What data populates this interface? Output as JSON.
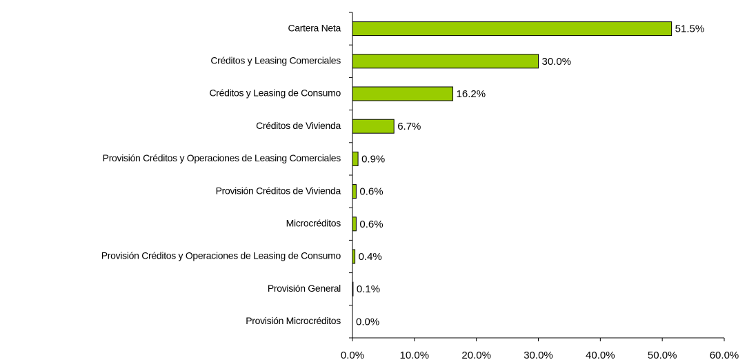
{
  "chart_data": {
    "type": "barh",
    "categories": [
      "Cartera Neta",
      "Créditos y Leasing Comerciales",
      "Créditos y Leasing de Consumo",
      "Créditos de Vivienda",
      "Provisión Créditos y Operaciones de Leasing Comerciales",
      "Provisión Créditos de Vivienda",
      "Microcréditos",
      "Provisión Créditos y Operaciones de Leasing de Consumo",
      "Provisión General",
      "Provisión Microcréditos"
    ],
    "values": [
      51.5,
      30.0,
      16.2,
      6.7,
      0.9,
      0.6,
      0.6,
      0.4,
      0.1,
      0.0
    ],
    "value_labels": [
      "51.5%",
      "30.0%",
      "16.2%",
      "6.7%",
      "0.9%",
      "0.6%",
      "0.6%",
      "0.4%",
      "0.1%",
      "0.0%"
    ],
    "color": "#99cc00",
    "xlim": [
      0,
      60
    ],
    "xticks": [
      {
        "value": 0,
        "label": "0.0%"
      },
      {
        "value": 10,
        "label": "10.0%"
      },
      {
        "value": 20,
        "label": "20.0%"
      },
      {
        "value": 30,
        "label": "30.0%"
      },
      {
        "value": 40,
        "label": "40.0%"
      },
      {
        "value": 50,
        "label": "50.0%"
      },
      {
        "value": 60,
        "label": "60.0%"
      }
    ],
    "grid": false
  }
}
